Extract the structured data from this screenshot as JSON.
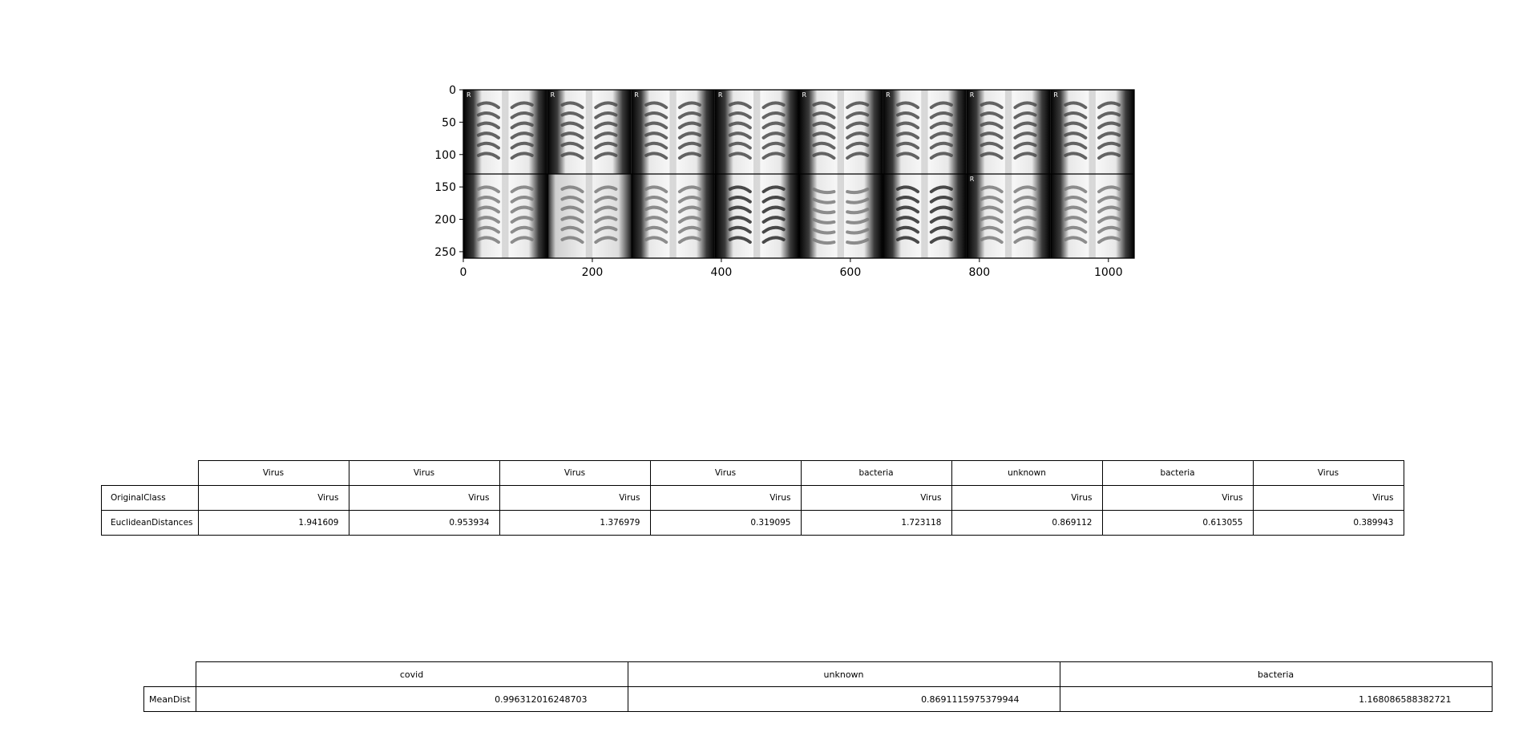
{
  "chart_data": {
    "type": "image_grid",
    "x_ticks": [
      0,
      200,
      400,
      600,
      800,
      1000
    ],
    "y_ticks": [
      0,
      50,
      100,
      150,
      200,
      250
    ],
    "xlim": [
      0,
      1040
    ],
    "ylim": [
      260,
      0
    ],
    "grid": {
      "rows": 2,
      "cols": 8,
      "tile_size": 130
    },
    "tiles": [
      {
        "row": 0,
        "style": "xray-reference",
        "marker": "R"
      },
      {
        "row": 0,
        "style": "xray-reference",
        "marker": "R"
      },
      {
        "row": 0,
        "style": "xray-reference",
        "marker": "R"
      },
      {
        "row": 0,
        "style": "xray-reference",
        "marker": "R"
      },
      {
        "row": 0,
        "style": "xray-reference",
        "marker": "R"
      },
      {
        "row": 0,
        "style": "xray-reference",
        "marker": "R"
      },
      {
        "row": 0,
        "style": "xray-reference",
        "marker": "R"
      },
      {
        "row": 0,
        "style": "xray-reference",
        "marker": "R"
      },
      {
        "row": 1,
        "style": "xray-light"
      },
      {
        "row": 1,
        "style": "xray-overexposed"
      },
      {
        "row": 1,
        "style": "xray-light"
      },
      {
        "row": 1,
        "style": "xray-dark"
      },
      {
        "row": 1,
        "style": "xray-rotated"
      },
      {
        "row": 1,
        "style": "xray-dark"
      },
      {
        "row": 1,
        "style": "xray-light",
        "marker": "R"
      },
      {
        "row": 1,
        "style": "xray-light"
      }
    ]
  },
  "table_neighbors": {
    "header": [
      "Virus",
      "Virus",
      "Virus",
      "Virus",
      "bacteria",
      "unknown",
      "bacteria",
      "Virus"
    ],
    "rows": [
      {
        "label": "OriginalClass",
        "values": [
          "Virus",
          "Virus",
          "Virus",
          "Virus",
          "Virus",
          "Virus",
          "Virus",
          "Virus"
        ]
      },
      {
        "label": "EuclideanDistances",
        "values": [
          "1.941609",
          "0.953934",
          "1.376979",
          "0.319095",
          "1.723118",
          "0.869112",
          "0.613055",
          "0.389943"
        ]
      }
    ]
  },
  "table_mean": {
    "header": [
      "covid",
      "unknown",
      "bacteria"
    ],
    "row": {
      "label": "MeanDist",
      "values": [
        "0.996312016248703",
        "0.8691115975379944",
        "1.168086588382721"
      ]
    }
  }
}
